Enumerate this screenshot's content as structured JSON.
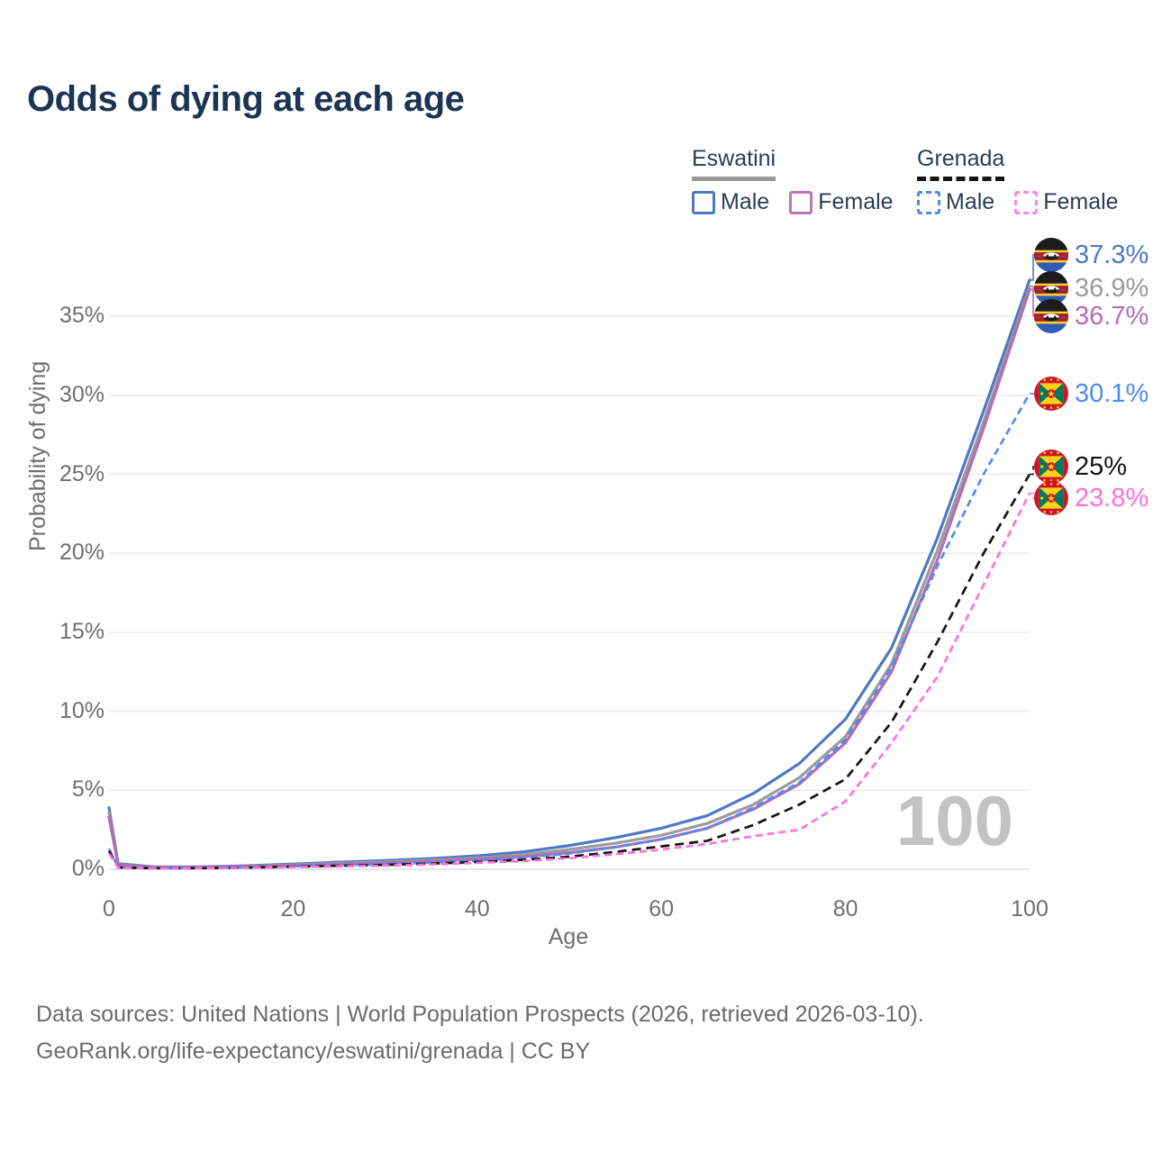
{
  "title": "Odds of dying at each age",
  "legend": {
    "groups": [
      {
        "id": "eswatini",
        "label": "Eswatini",
        "line_style": "solid",
        "underline_color": "#9a9a9a",
        "items": [
          {
            "id": "eswatini-male",
            "label": "Male",
            "color": "#4d79c3",
            "dashed": false
          },
          {
            "id": "eswatini-female",
            "label": "Female",
            "color": "#bd74bd",
            "dashed": false
          }
        ]
      },
      {
        "id": "grenada",
        "label": "Grenada",
        "line_style": "dashed",
        "underline_color": "#141414",
        "items": [
          {
            "id": "grenada-male",
            "label": "Male",
            "color": "#4e8cf0",
            "dashed": true
          },
          {
            "id": "grenada-female",
            "label": "Female",
            "color": "#ff86e2",
            "dashed": true
          }
        ]
      }
    ]
  },
  "chart_data": {
    "type": "line",
    "title": "Odds of dying at each age",
    "xlabel": "Age",
    "ylabel": "Probability of dying",
    "watermark": "100",
    "xlim": [
      0,
      100
    ],
    "ylim_percent": [
      0,
      35
    ],
    "x_ticks": [
      0,
      20,
      40,
      60,
      80,
      100
    ],
    "y_ticks_percent": [
      0,
      5,
      10,
      15,
      20,
      25,
      30,
      35
    ],
    "grid": "horizontal",
    "legend_position": "top-right",
    "ages": [
      0,
      1,
      5,
      10,
      15,
      20,
      25,
      30,
      35,
      40,
      45,
      50,
      55,
      60,
      65,
      70,
      75,
      80,
      85,
      90,
      95,
      100
    ],
    "series": [
      {
        "id": "eswatini-male",
        "name": "Eswatini Male",
        "color": "#4d79c3",
        "dash": false,
        "flag": "eswatini",
        "end_label": "37.3%",
        "values_percent": [
          3.9,
          0.35,
          0.15,
          0.15,
          0.22,
          0.33,
          0.45,
          0.55,
          0.68,
          0.85,
          1.1,
          1.5,
          2.0,
          2.6,
          3.4,
          4.8,
          6.7,
          9.5,
          14.0,
          21.0,
          29.0,
          37.3
        ]
      },
      {
        "id": "eswatini-both",
        "name": "Eswatini",
        "color": "#9b9b9b",
        "dash": false,
        "flag": "eswatini",
        "end_label": "36.9%",
        "values_percent": [
          3.6,
          0.3,
          0.13,
          0.13,
          0.19,
          0.28,
          0.38,
          0.47,
          0.58,
          0.72,
          0.92,
          1.25,
          1.65,
          2.15,
          2.9,
          4.1,
          5.8,
          8.4,
          13.0,
          20.2,
          28.3,
          36.9
        ]
      },
      {
        "id": "eswatini-female",
        "name": "Eswatini Female",
        "color": "#b46cb4",
        "dash": false,
        "flag": "eswatini",
        "end_label": "36.7%",
        "values_percent": [
          3.3,
          0.28,
          0.12,
          0.12,
          0.17,
          0.24,
          0.32,
          0.4,
          0.5,
          0.63,
          0.8,
          1.05,
          1.4,
          1.9,
          2.6,
          3.8,
          5.4,
          8.0,
          12.5,
          19.6,
          27.9,
          36.7
        ]
      },
      {
        "id": "grenada-male",
        "name": "Grenada Male",
        "color": "#4e8cf0",
        "dash": true,
        "flag": "grenada",
        "end_label": "30.1%",
        "values_percent": [
          1.3,
          0.12,
          0.07,
          0.08,
          0.12,
          0.18,
          0.25,
          0.32,
          0.42,
          0.55,
          0.72,
          1.0,
          1.4,
          1.9,
          2.6,
          3.9,
          5.5,
          8.2,
          12.8,
          19.2,
          25.0,
          30.1
        ]
      },
      {
        "id": "grenada-both",
        "name": "Grenada",
        "color": "#141414",
        "dash": true,
        "flag": "grenada",
        "end_label": "25%",
        "values_percent": [
          1.15,
          0.11,
          0.06,
          0.07,
          0.11,
          0.16,
          0.22,
          0.28,
          0.36,
          0.46,
          0.6,
          0.8,
          1.1,
          1.45,
          1.8,
          2.8,
          4.1,
          5.7,
          9.3,
          14.4,
          20.0,
          25.0
        ]
      },
      {
        "id": "grenada-female",
        "name": "Grenada Female",
        "color": "#ff70dd",
        "dash": true,
        "flag": "grenada",
        "end_label": "23.8%",
        "values_percent": [
          1.0,
          0.1,
          0.05,
          0.06,
          0.09,
          0.13,
          0.18,
          0.23,
          0.3,
          0.4,
          0.52,
          0.7,
          0.95,
          1.25,
          1.6,
          2.1,
          2.5,
          4.3,
          8.0,
          12.2,
          18.0,
          23.8
        ]
      }
    ]
  },
  "footer": {
    "line1": "Data sources: United Nations | World Population Prospects (2026, retrieved 2026-03-10).",
    "line2": "GeoRank.org/life-expectancy/eswatini/grenada | CC BY"
  }
}
